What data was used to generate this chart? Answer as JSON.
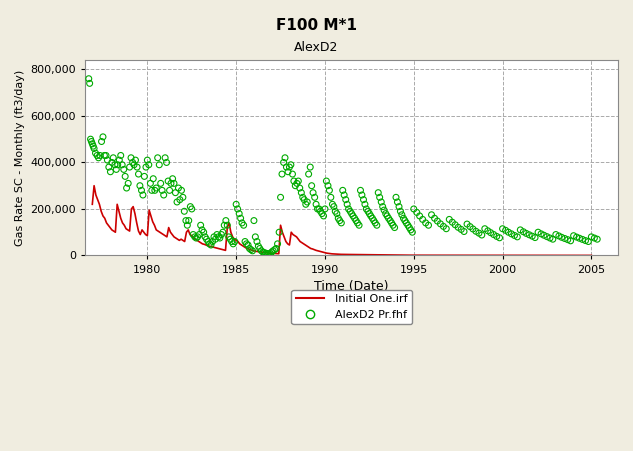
{
  "title": "F100 M*1",
  "subtitle": "AlexD2",
  "xlabel": "Time (Date)",
  "ylabel": "Gas Rate SC - Monthly (ft3/day)",
  "xlim": [
    1976.5,
    2006.5
  ],
  "ylim": [
    0,
    840000
  ],
  "yticks": [
    0,
    200000,
    400000,
    600000,
    800000
  ],
  "xticks": [
    1980,
    1985,
    1990,
    1995,
    2000,
    2005
  ],
  "bg_color": "#f0ede0",
  "plot_bg_color": "#ffffff",
  "grid_color": "#aaaaaa",
  "red_color": "#cc0000",
  "green_color": "#00aa00",
  "legend_labels": [
    "Initial One.irf",
    "AlexD2 Pr.fhf"
  ],
  "sim_data": {
    "x": [
      1976.9,
      1977.0,
      1977.1,
      1977.2,
      1977.3,
      1977.4,
      1977.5,
      1977.6,
      1977.7,
      1977.8,
      1977.9,
      1978.0,
      1978.1,
      1978.2,
      1978.3,
      1978.4,
      1978.5,
      1978.6,
      1978.7,
      1978.8,
      1978.9,
      1979.0,
      1979.1,
      1979.2,
      1979.3,
      1979.4,
      1979.5,
      1979.6,
      1979.7,
      1979.8,
      1979.9,
      1980.0,
      1980.1,
      1980.2,
      1980.3,
      1980.4,
      1980.5,
      1980.6,
      1980.7,
      1980.8,
      1980.9,
      1981.0,
      1981.1,
      1981.2,
      1981.3,
      1981.4,
      1981.5,
      1981.6,
      1981.7,
      1981.8,
      1981.9,
      1982.0,
      1982.1,
      1982.2,
      1982.3,
      1982.4,
      1982.5,
      1982.6,
      1982.7,
      1982.8,
      1982.9,
      1983.0,
      1983.1,
      1983.2,
      1983.3,
      1983.4,
      1983.5,
      1983.6,
      1983.7,
      1983.8,
      1983.9,
      1984.0,
      1984.1,
      1984.2,
      1984.3,
      1984.4,
      1984.5,
      1984.6,
      1984.7,
      1984.8,
      1984.9,
      1985.0,
      1985.1,
      1985.2,
      1985.3,
      1985.4,
      1985.5,
      1985.6,
      1985.7,
      1985.8,
      1985.9,
      1986.0,
      1986.1,
      1986.2,
      1986.3,
      1986.4,
      1986.5,
      1986.6,
      1986.7,
      1986.8,
      1986.9,
      1987.0,
      1987.1,
      1987.2,
      1987.3,
      1987.4,
      1987.5,
      1987.6,
      1987.7,
      1987.8,
      1987.9,
      1988.0,
      1988.1,
      1988.2,
      1988.3,
      1988.4,
      1988.5,
      1988.6,
      1988.7,
      1988.8,
      1988.9,
      1989.0,
      1989.1,
      1989.2,
      1989.3,
      1989.4,
      1989.5,
      1989.6,
      1989.7,
      1989.8,
      1989.9,
      1990.0,
      1990.1,
      1990.2,
      1990.3,
      1990.4,
      1990.5,
      1990.6,
      1990.7,
      1990.8,
      1990.9,
      1991.0,
      1991.2,
      1991.4,
      1991.6,
      1991.8,
      1992.0,
      1992.2,
      1992.4,
      1992.6,
      1992.8,
      1993.0,
      1993.2,
      1993.4,
      1993.6,
      1993.8,
      1994.0,
      1994.2,
      1994.4,
      1994.6,
      1994.8,
      1995.0,
      1995.5,
      1996.0,
      1996.5,
      1997.0,
      1997.5,
      1998.0,
      1998.5,
      1999.0,
      1999.5,
      2000.0,
      2000.5,
      2001.0,
      2001.5,
      2002.0,
      2002.5,
      2003.0,
      2003.5,
      2004.0,
      2004.5,
      2005.0
    ],
    "y": [
      220000,
      300000,
      260000,
      240000,
      220000,
      190000,
      170000,
      160000,
      140000,
      130000,
      120000,
      110000,
      105000,
      100000,
      220000,
      190000,
      160000,
      140000,
      130000,
      115000,
      110000,
      105000,
      200000,
      210000,
      180000,
      140000,
      105000,
      90000,
      110000,
      100000,
      90000,
      85000,
      195000,
      170000,
      145000,
      130000,
      110000,
      105000,
      100000,
      95000,
      90000,
      85000,
      80000,
      120000,
      100000,
      90000,
      80000,
      75000,
      70000,
      65000,
      70000,
      65000,
      60000,
      100000,
      110000,
      90000,
      85000,
      75000,
      70000,
      65000,
      60000,
      55000,
      50000,
      48000,
      45000,
      42000,
      40000,
      38000,
      36000,
      34000,
      32000,
      30000,
      28000,
      26000,
      24000,
      22000,
      120000,
      140000,
      100000,
      80000,
      70000,
      65000,
      60000,
      50000,
      45000,
      40000,
      35000,
      30000,
      28000,
      25000,
      22000,
      20000,
      18000,
      17000,
      16000,
      15000,
      14000,
      13000,
      12000,
      11000,
      10000,
      9500,
      9000,
      8500,
      8000,
      7500,
      130000,
      100000,
      80000,
      60000,
      50000,
      45000,
      100000,
      90000,
      85000,
      80000,
      70000,
      60000,
      55000,
      50000,
      45000,
      40000,
      35000,
      30000,
      28000,
      25000,
      22000,
      20000,
      18000,
      16000,
      14000,
      12000,
      10000,
      9000,
      8000,
      7000,
      6500,
      6000,
      5500,
      5000,
      4800,
      4600,
      4400,
      4200,
      4000,
      3800,
      3600,
      3400,
      3200,
      3000,
      2800,
      2600,
      2400,
      2200,
      2000,
      1800,
      1600,
      1500,
      1400,
      1300,
      1200,
      1100,
      1050,
      1000,
      950,
      900,
      850,
      800,
      750,
      700,
      650,
      600,
      580,
      560,
      540,
      520,
      500,
      480,
      460,
      440,
      420,
      400
    ]
  },
  "actual_data": {
    "x": [
      1976.7,
      1976.75,
      1976.8,
      1976.85,
      1976.9,
      1976.95,
      1977.0,
      1977.08,
      1977.17,
      1977.25,
      1977.33,
      1977.42,
      1977.5,
      1977.58,
      1977.67,
      1977.75,
      1977.83,
      1977.92,
      1978.0,
      1978.08,
      1978.17,
      1978.25,
      1978.33,
      1978.42,
      1978.5,
      1978.58,
      1978.67,
      1978.75,
      1978.83,
      1978.92,
      1979.0,
      1979.08,
      1979.17,
      1979.25,
      1979.33,
      1979.42,
      1979.5,
      1979.58,
      1979.67,
      1979.75,
      1979.83,
      1979.92,
      1980.0,
      1980.08,
      1980.17,
      1980.25,
      1980.33,
      1980.42,
      1980.5,
      1980.58,
      1980.67,
      1980.75,
      1980.83,
      1980.92,
      1981.0,
      1981.08,
      1981.17,
      1981.25,
      1981.33,
      1981.42,
      1981.5,
      1981.58,
      1981.67,
      1981.75,
      1981.83,
      1981.92,
      1982.0,
      1982.08,
      1982.17,
      1982.25,
      1982.33,
      1982.42,
      1982.5,
      1982.58,
      1982.67,
      1982.75,
      1982.83,
      1982.92,
      1983.0,
      1983.08,
      1983.17,
      1983.25,
      1983.33,
      1983.42,
      1983.5,
      1983.58,
      1983.67,
      1983.75,
      1983.83,
      1983.92,
      1984.0,
      1984.08,
      1984.17,
      1984.25,
      1984.33,
      1984.42,
      1984.5,
      1984.58,
      1984.67,
      1984.75,
      1984.83,
      1984.92,
      1985.0,
      1985.08,
      1985.17,
      1985.25,
      1985.33,
      1985.42,
      1985.5,
      1985.58,
      1985.67,
      1985.75,
      1985.83,
      1985.92,
      1986.0,
      1986.08,
      1986.17,
      1986.25,
      1986.33,
      1986.42,
      1986.5,
      1986.58,
      1986.67,
      1986.75,
      1986.83,
      1986.92,
      1987.0,
      1987.08,
      1987.17,
      1987.25,
      1987.33,
      1987.42,
      1987.5,
      1987.58,
      1987.67,
      1987.75,
      1987.83,
      1987.92,
      1988.0,
      1988.08,
      1988.17,
      1988.25,
      1988.33,
      1988.42,
      1988.5,
      1988.58,
      1988.67,
      1988.75,
      1988.83,
      1988.92,
      1989.0,
      1989.08,
      1989.17,
      1989.25,
      1989.33,
      1989.42,
      1989.5,
      1989.58,
      1989.67,
      1989.75,
      1989.83,
      1989.92,
      1990.0,
      1990.08,
      1990.17,
      1990.25,
      1990.33,
      1990.42,
      1990.5,
      1990.58,
      1990.67,
      1990.75,
      1990.83,
      1990.92,
      1991.0,
      1991.08,
      1991.17,
      1991.25,
      1991.33,
      1991.42,
      1991.5,
      1991.58,
      1991.67,
      1991.75,
      1991.83,
      1991.92,
      1992.0,
      1992.08,
      1992.17,
      1992.25,
      1992.33,
      1992.42,
      1992.5,
      1992.58,
      1992.67,
      1992.75,
      1992.83,
      1992.92,
      1993.0,
      1993.08,
      1993.17,
      1993.25,
      1993.33,
      1993.42,
      1993.5,
      1993.58,
      1993.67,
      1993.75,
      1993.83,
      1993.92,
      1994.0,
      1994.08,
      1994.17,
      1994.25,
      1994.33,
      1994.42,
      1994.5,
      1994.58,
      1994.67,
      1994.75,
      1994.83,
      1994.92,
      1995.0,
      1995.17,
      1995.33,
      1995.5,
      1995.67,
      1995.83,
      1996.0,
      1996.17,
      1996.33,
      1996.5,
      1996.67,
      1996.83,
      1997.0,
      1997.17,
      1997.33,
      1997.5,
      1997.67,
      1997.83,
      1998.0,
      1998.17,
      1998.33,
      1998.5,
      1998.67,
      1998.83,
      1999.0,
      1999.17,
      1999.33,
      1999.5,
      1999.67,
      1999.83,
      2000.0,
      2000.17,
      2000.33,
      2000.5,
      2000.67,
      2000.83,
      2001.0,
      2001.17,
      2001.33,
      2001.5,
      2001.67,
      2001.83,
      2002.0,
      2002.17,
      2002.33,
      2002.5,
      2002.67,
      2002.83,
      2003.0,
      2003.17,
      2003.33,
      2003.5,
      2003.67,
      2003.83,
      2004.0,
      2004.17,
      2004.33,
      2004.5,
      2004.67,
      2004.83,
      2005.0,
      2005.17,
      2005.33
    ],
    "y": [
      760000,
      740000,
      500000,
      490000,
      480000,
      470000,
      460000,
      440000,
      430000,
      420000,
      430000,
      490000,
      510000,
      430000,
      430000,
      410000,
      380000,
      360000,
      400000,
      420000,
      390000,
      370000,
      390000,
      410000,
      430000,
      390000,
      370000,
      340000,
      290000,
      310000,
      380000,
      420000,
      400000,
      390000,
      410000,
      380000,
      350000,
      300000,
      280000,
      260000,
      340000,
      380000,
      410000,
      390000,
      310000,
      280000,
      330000,
      280000,
      290000,
      420000,
      390000,
      310000,
      280000,
      260000,
      420000,
      400000,
      320000,
      280000,
      310000,
      330000,
      310000,
      270000,
      230000,
      290000,
      240000,
      280000,
      250000,
      190000,
      150000,
      130000,
      150000,
      210000,
      200000,
      90000,
      80000,
      75000,
      80000,
      90000,
      130000,
      110000,
      100000,
      80000,
      70000,
      60000,
      50000,
      45000,
      60000,
      80000,
      70000,
      90000,
      80000,
      75000,
      90000,
      100000,
      130000,
      150000,
      130000,
      80000,
      70000,
      60000,
      50000,
      60000,
      220000,
      200000,
      180000,
      160000,
      140000,
      130000,
      60000,
      50000,
      45000,
      30000,
      25000,
      20000,
      150000,
      80000,
      60000,
      40000,
      30000,
      20000,
      15000,
      12000,
      10000,
      8000,
      7000,
      8000,
      15000,
      20000,
      25000,
      30000,
      50000,
      100000,
      250000,
      350000,
      400000,
      420000,
      380000,
      360000,
      380000,
      390000,
      350000,
      320000,
      300000,
      310000,
      320000,
      290000,
      270000,
      250000,
      240000,
      220000,
      230000,
      350000,
      380000,
      300000,
      270000,
      250000,
      220000,
      200000,
      200000,
      190000,
      180000,
      170000,
      200000,
      320000,
      300000,
      280000,
      250000,
      220000,
      210000,
      190000,
      180000,
      160000,
      150000,
      140000,
      280000,
      260000,
      240000,
      220000,
      200000,
      190000,
      180000,
      170000,
      160000,
      150000,
      140000,
      130000,
      280000,
      260000,
      240000,
      220000,
      200000,
      190000,
      180000,
      170000,
      160000,
      150000,
      140000,
      130000,
      270000,
      250000,
      230000,
      210000,
      195000,
      180000,
      170000,
      160000,
      150000,
      140000,
      130000,
      120000,
      250000,
      230000,
      210000,
      190000,
      175000,
      160000,
      150000,
      140000,
      130000,
      120000,
      110000,
      100000,
      200000,
      185000,
      170000,
      155000,
      140000,
      130000,
      175000,
      160000,
      148000,
      136000,
      125000,
      115000,
      155000,
      143000,
      132000,
      121000,
      112000,
      103000,
      135000,
      124000,
      114000,
      104000,
      96000,
      88000,
      115000,
      106000,
      98000,
      90000,
      82000,
      76000,
      115000,
      108000,
      100000,
      93000,
      86000,
      80000,
      110000,
      102000,
      95000,
      89000,
      83000,
      77000,
      100000,
      93000,
      87000,
      81000,
      75000,
      70000,
      90000,
      84000,
      78000,
      73000,
      68000,
      63000,
      85000,
      79000,
      74000,
      69000,
      64000,
      60000,
      80000,
      75000,
      70000
    ]
  }
}
